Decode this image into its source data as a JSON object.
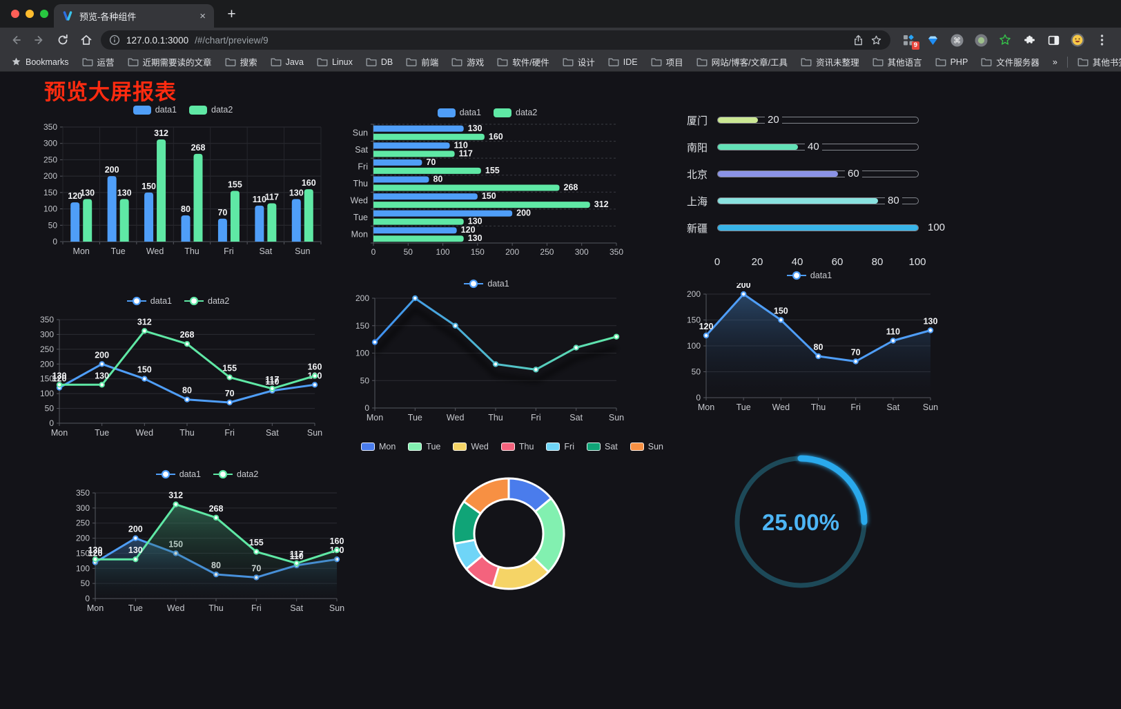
{
  "browser": {
    "tab_title": "预览-各种组件",
    "close_tab": "×",
    "new_tab": "+",
    "url_host": "127.0.0.1:3000",
    "url_path": "/#/chart/preview/9",
    "extensions_badge": "9",
    "bookmarks_label": "Bookmarks",
    "bookmark_folders": [
      "运营",
      "近期需要读的文章",
      "搜索",
      "Java",
      "Linux",
      "DB",
      "前端",
      "游戏",
      "软件/硬件",
      "设计",
      "IDE",
      "项目",
      "网站/博客/文章/工具",
      "资讯未整理",
      "其他语言",
      "PHP",
      "文件服务器"
    ],
    "bookmarks_overflow": "»",
    "other_bookmarks": "其他书签"
  },
  "page": {
    "title": "预览大屏报表",
    "title_color": "#fe2b10"
  },
  "chart_data": [
    {
      "id": "bar-grouped",
      "type": "bar",
      "categories": [
        "Mon",
        "Tue",
        "Wed",
        "Thu",
        "Fri",
        "Sat",
        "Sun"
      ],
      "series": [
        {
          "name": "data1",
          "color": "#4f9ef8",
          "values": [
            120,
            200,
            150,
            80,
            70,
            110,
            130
          ]
        },
        {
          "name": "data2",
          "color": "#5fe8a5",
          "values": [
            130,
            130,
            312,
            268,
            155,
            117,
            160
          ]
        }
      ],
      "ylim": [
        0,
        350
      ],
      "ystep": 50,
      "legend_position": "top",
      "grid": true
    },
    {
      "id": "bar-horizontal",
      "type": "bar",
      "orientation": "horizontal",
      "categories": [
        "Mon",
        "Tue",
        "Wed",
        "Thu",
        "Fri",
        "Sat",
        "Sun"
      ],
      "series": [
        {
          "name": "data1",
          "color": "#4f9ef8",
          "values": [
            120,
            200,
            150,
            80,
            70,
            110,
            130
          ]
        },
        {
          "name": "data2",
          "color": "#5fe8a5",
          "values": [
            130,
            130,
            312,
            268,
            155,
            117,
            160
          ]
        }
      ],
      "xlim": [
        0,
        350
      ],
      "xstep": 50,
      "legend_position": "top"
    },
    {
      "id": "progress-list",
      "type": "progress",
      "max": 100,
      "items": [
        {
          "label": "厦门",
          "value": 20,
          "color": "#cbe793"
        },
        {
          "label": "南阳",
          "value": 40,
          "color": "#63e2b7"
        },
        {
          "label": "北京",
          "value": 60,
          "color": "#8b93e6"
        },
        {
          "label": "上海",
          "value": 80,
          "color": "#89e2df"
        },
        {
          "label": "新疆",
          "value": 100,
          "color": "#38b4e8"
        }
      ],
      "axis_ticks": [
        0,
        20,
        40,
        60,
        80,
        100
      ]
    },
    {
      "id": "line-two",
      "type": "line",
      "categories": [
        "Mon",
        "Tue",
        "Wed",
        "Thu",
        "Fri",
        "Sat",
        "Sun"
      ],
      "series": [
        {
          "name": "data1",
          "color": "#4f9ef8",
          "values": [
            120,
            200,
            150,
            80,
            70,
            110,
            130
          ]
        },
        {
          "name": "data2",
          "color": "#5fe8a5",
          "values": [
            130,
            130,
            312,
            268,
            155,
            117,
            160
          ]
        }
      ],
      "ylim": [
        0,
        350
      ],
      "ystep": 50,
      "labels": true
    },
    {
      "id": "line-gradient",
      "type": "line",
      "shadow": true,
      "categories": [
        "Mon",
        "Tue",
        "Wed",
        "Thu",
        "Fri",
        "Sat",
        "Sun"
      ],
      "series": [
        {
          "name": "data1",
          "color": "#4f9ef8",
          "gradient": [
            "#3f8ff2",
            "#61e9a7"
          ],
          "values": [
            120,
            200,
            150,
            80,
            70,
            110,
            130
          ]
        }
      ],
      "ylim": [
        0,
        200
      ],
      "ystep": 50,
      "labels": false
    },
    {
      "id": "area-single",
      "type": "area",
      "categories": [
        "Mon",
        "Tue",
        "Wed",
        "Thu",
        "Fri",
        "Sat",
        "Sun"
      ],
      "series": [
        {
          "name": "data1",
          "color": "#4f9ef8",
          "fill_from": "rgba(58,110,165,0.55)",
          "fill_to": "rgba(20,30,48,0.02)",
          "values": [
            120,
            200,
            150,
            80,
            70,
            110,
            130
          ]
        }
      ],
      "ylim": [
        0,
        200
      ],
      "ystep": 50,
      "labels": true
    },
    {
      "id": "area-two",
      "type": "area",
      "categories": [
        "Mon",
        "Tue",
        "Wed",
        "Thu",
        "Fri",
        "Sat",
        "Sun"
      ],
      "series": [
        {
          "name": "data1",
          "color": "#4f9ef8",
          "fill_from": "rgba(58,110,165,0.55)",
          "fill_to": "rgba(20,30,48,0.02)",
          "values": [
            120,
            200,
            150,
            80,
            70,
            110,
            130
          ]
        },
        {
          "name": "data2",
          "color": "#5fe8a5",
          "fill_from": "rgba(64,150,112,0.55)",
          "fill_to": "rgba(20,40,32,0.02)",
          "values": [
            130,
            130,
            312,
            268,
            155,
            117,
            160
          ]
        }
      ],
      "ylim": [
        0,
        350
      ],
      "ystep": 50,
      "labels": true
    },
    {
      "id": "donut",
      "type": "pie",
      "donut": true,
      "items": [
        {
          "label": "Mon",
          "value": 120,
          "color": "#4a7cec"
        },
        {
          "label": "Tue",
          "value": 200,
          "color": "#82f0b0"
        },
        {
          "label": "Wed",
          "value": 150,
          "color": "#f5d466"
        },
        {
          "label": "Thu",
          "value": 80,
          "color": "#f4637d"
        },
        {
          "label": "Fri",
          "value": 70,
          "color": "#6fd5f7"
        },
        {
          "label": "Sat",
          "value": 110,
          "color": "#10a477"
        },
        {
          "label": "Sun",
          "value": 130,
          "color": "#f79043"
        }
      ]
    },
    {
      "id": "gauge",
      "type": "gauge",
      "value": 25,
      "label": "25.00%",
      "color": "#2aa9ec",
      "track_color": "#1d4958",
      "text_color": "#4db5f5"
    }
  ]
}
